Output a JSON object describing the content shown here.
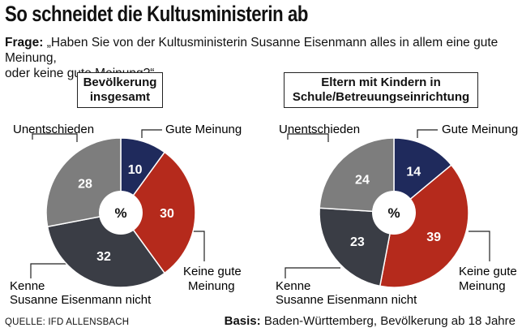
{
  "title": "So schneidet die Kultusministerin ab",
  "question": {
    "label": "Frage:",
    "text_line1": "„Haben Sie von der Kultusministerin Susanne Eisenmann alles in allem eine gute Meinung,",
    "text_line2": "oder keine gute Meinung?“"
  },
  "chart_data": [
    {
      "type": "pie",
      "title_line1": "Bevölkerung",
      "title_line2": "insgesamt",
      "center_label": "%",
      "slices": [
        {
          "label": "Gute Meinung",
          "value": 10,
          "color": "#1f2a5c"
        },
        {
          "label": "Keine gute Meinung",
          "value": 30,
          "color": "#b52a1c"
        },
        {
          "label": "Kenne Susanne Eisenmann nicht",
          "value": 32,
          "color": "#3a3d45"
        },
        {
          "label": "Unentschieden",
          "value": 28,
          "color": "#7d7d7d"
        }
      ]
    },
    {
      "type": "pie",
      "title_line1": "Eltern mit Kindern in",
      "title_line2": "Schule/Betreuungseinrichtung",
      "center_label": "%",
      "slices": [
        {
          "label": "Gute Meinung",
          "value": 14,
          "color": "#1f2a5c"
        },
        {
          "label": "Keine gute Meinung",
          "value": 39,
          "color": "#b52a1c"
        },
        {
          "label": "Kenne Susanne Eisenmann nicht",
          "value": 23,
          "color": "#3a3d45"
        },
        {
          "label": "Unentschieden",
          "value": 24,
          "color": "#7d7d7d"
        }
      ]
    }
  ],
  "callouts": {
    "gute": "Gute Meinung",
    "keine_line1": "Keine gute",
    "keine_line2": "Meinung",
    "kenne_line1": "Kenne",
    "kenne_line2": "Susanne Eisenmann nicht",
    "unent": "Unentschieden"
  },
  "footer": {
    "source": "QUELLE: IFD ALLENSBACH",
    "basis_label": "Basis:",
    "basis_text": "Baden-Württemberg, Bevölkerung ab 18 Jahre"
  }
}
